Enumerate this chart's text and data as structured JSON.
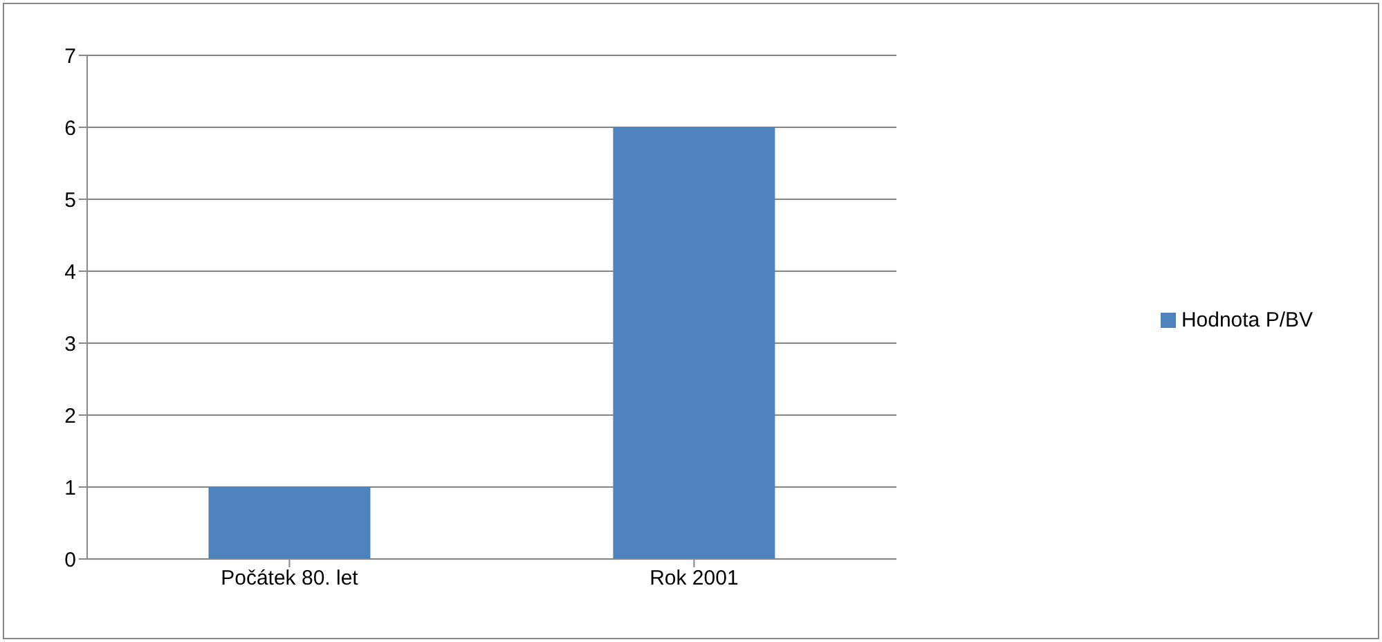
{
  "chart_data": {
    "type": "bar",
    "categories": [
      "Počátek 80. let",
      "Rok 2001"
    ],
    "series": [
      {
        "name": "Hodnota P/BV",
        "color": "#4f81bd",
        "values": [
          1,
          6
        ]
      }
    ],
    "ylim": [
      0,
      7
    ],
    "yticks": [
      0,
      1,
      2,
      3,
      4,
      5,
      6,
      7
    ],
    "grid": "y",
    "legend": "right"
  }
}
